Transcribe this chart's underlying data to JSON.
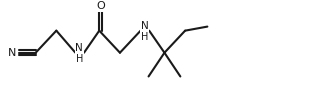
{
  "bg_color": "#ffffff",
  "line_color": "#1a1a1a",
  "figsize": [
    3.13,
    1.06
  ],
  "dpi": 100,
  "xlim": [
    0,
    9.8
  ],
  "ylim": [
    0,
    3.0
  ],
  "lw": 1.5,
  "fs": 7.5,
  "ym": 1.55,
  "yu": 2.2,
  "yd": 0.85
}
